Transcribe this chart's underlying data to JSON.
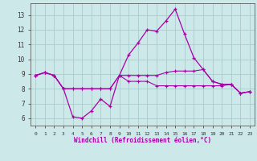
{
  "xlabel": "Windchill (Refroidissement éolien,°C)",
  "background_color": "#cce8e8",
  "grid_color": "#aacccc",
  "line_color": "#aa00aa",
  "x_ticks": [
    0,
    1,
    2,
    3,
    4,
    5,
    6,
    7,
    8,
    9,
    10,
    11,
    12,
    13,
    14,
    15,
    16,
    17,
    18,
    19,
    20,
    21,
    22,
    23
  ],
  "y_ticks": [
    6,
    7,
    8,
    9,
    10,
    11,
    12,
    13
  ],
  "ylim": [
    5.5,
    13.8
  ],
  "xlim": [
    -0.5,
    23.5
  ],
  "line1_x": [
    0,
    1,
    2,
    3,
    4,
    5,
    6,
    7,
    8,
    9,
    10,
    11,
    12,
    13,
    14,
    15,
    16,
    17,
    18,
    19,
    20,
    21,
    22,
    23
  ],
  "line1_y": [
    8.9,
    9.1,
    8.9,
    8.0,
    8.0,
    8.0,
    8.0,
    8.0,
    8.0,
    8.9,
    8.9,
    8.9,
    8.9,
    8.9,
    9.1,
    9.2,
    9.2,
    9.2,
    9.3,
    8.5,
    8.3,
    8.3,
    7.7,
    7.8
  ],
  "line2_x": [
    0,
    1,
    2,
    3,
    4,
    5,
    6,
    7,
    8,
    9,
    10,
    11,
    12,
    13,
    14,
    15,
    16,
    17,
    18,
    19,
    20,
    21,
    22,
    23
  ],
  "line2_y": [
    8.9,
    9.1,
    8.9,
    8.0,
    6.1,
    6.0,
    6.5,
    7.3,
    6.8,
    8.9,
    10.3,
    11.1,
    12.0,
    11.9,
    12.6,
    13.4,
    11.7,
    10.1,
    9.3,
    8.5,
    8.3,
    8.3,
    7.7,
    7.8
  ],
  "line3_x": [
    0,
    1,
    2,
    3,
    4,
    5,
    6,
    7,
    8,
    9,
    10,
    11,
    12,
    13,
    14,
    15,
    16,
    17,
    18,
    19,
    20,
    21,
    22,
    23
  ],
  "line3_y": [
    8.9,
    9.1,
    8.9,
    8.0,
    8.0,
    8.0,
    8.0,
    8.0,
    8.0,
    8.9,
    8.5,
    8.5,
    8.5,
    8.2,
    8.2,
    8.2,
    8.2,
    8.2,
    8.2,
    8.2,
    8.2,
    8.3,
    7.7,
    7.8
  ]
}
